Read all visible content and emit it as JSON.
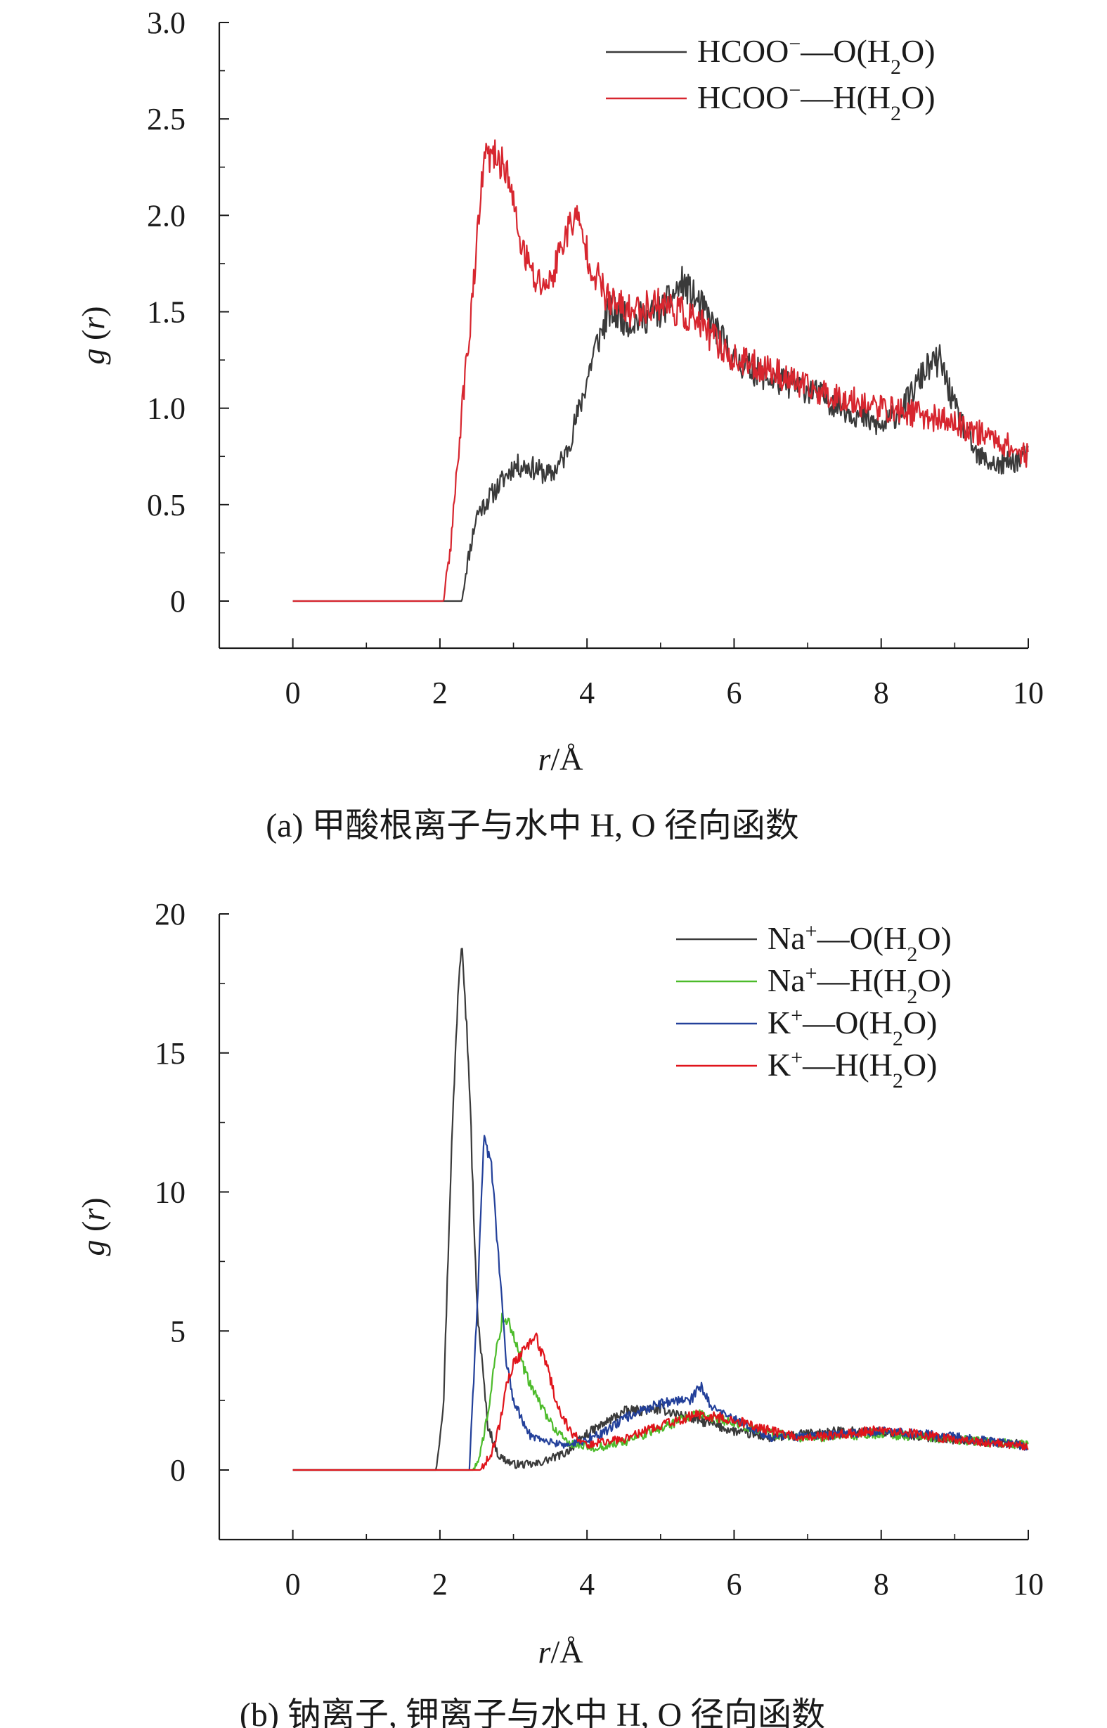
{
  "chart_data": [
    {
      "type": "line",
      "panel": "a",
      "caption": "(a) 甲酸根离子与水中 H, O 径向函数",
      "xlabel": "r/Å",
      "ylabel": "g (r)",
      "xlim": [
        -1,
        10
      ],
      "ylim": [
        -0.25,
        3.0
      ],
      "xticks": [
        0,
        2,
        4,
        6,
        8,
        10
      ],
      "xtick_labels": [
        "0",
        "2",
        "4",
        "6",
        "8",
        "10"
      ],
      "yticks": [
        0,
        0.5,
        1.0,
        1.5,
        2.0,
        2.5,
        3.0
      ],
      "ytick_labels": [
        "0",
        "0.5",
        "1.0",
        "1.5",
        "2.0",
        "2.5",
        "3.0"
      ],
      "legend_position": "top-right",
      "noise": 0.09,
      "series": [
        {
          "name": "HCOO⁻—O(H₂O)",
          "color": "#3a3a3a",
          "x": [
            0,
            2.3,
            2.35,
            2.5,
            2.8,
            3.0,
            3.2,
            3.5,
            3.7,
            3.9,
            4.1,
            4.3,
            4.6,
            5.0,
            5.3,
            5.6,
            6.0,
            6.5,
            7.0,
            7.5,
            8.0,
            8.3,
            8.6,
            8.8,
            9.0,
            9.3,
            9.6,
            10.0
          ],
          "y": [
            0,
            0,
            0.15,
            0.45,
            0.6,
            0.7,
            0.7,
            0.65,
            0.75,
            1.0,
            1.3,
            1.5,
            1.45,
            1.5,
            1.65,
            1.5,
            1.25,
            1.15,
            1.1,
            1.0,
            0.9,
            1.0,
            1.2,
            1.25,
            1.0,
            0.75,
            0.7,
            0.75
          ]
        },
        {
          "name": "HCOO⁻—H(H₂O)",
          "color": "#d7262f",
          "x": [
            0,
            2.05,
            2.15,
            2.3,
            2.45,
            2.6,
            2.75,
            2.9,
            3.1,
            3.3,
            3.5,
            3.7,
            3.85,
            4.05,
            4.3,
            4.6,
            5.0,
            5.5,
            6.0,
            6.5,
            7.0,
            7.5,
            8.0,
            8.5,
            9.0,
            9.5,
            10.0
          ],
          "y": [
            0,
            0,
            0.3,
            1.0,
            1.6,
            2.3,
            2.3,
            2.25,
            1.85,
            1.65,
            1.65,
            1.9,
            2.0,
            1.75,
            1.55,
            1.5,
            1.55,
            1.45,
            1.25,
            1.2,
            1.1,
            1.05,
            1.0,
            0.97,
            0.92,
            0.85,
            0.75
          ]
        }
      ]
    },
    {
      "type": "line",
      "panel": "b",
      "caption": "(b) 钠离子, 钾离子与水中 H, O 径向函数",
      "xlabel": "r/Å",
      "ylabel": "g (r)",
      "xlim": [
        -1,
        10
      ],
      "ylim": [
        -2.5,
        20
      ],
      "xticks": [
        0,
        2,
        4,
        6,
        8,
        10
      ],
      "xtick_labels": [
        "0",
        "2",
        "4",
        "6",
        "8",
        "10"
      ],
      "yticks": [
        0,
        5,
        10,
        15,
        20
      ],
      "ytick_labels": [
        "0",
        "5",
        "10",
        "15",
        "20"
      ],
      "legend_position": "top-right",
      "noise": 0.35,
      "series": [
        {
          "name": "Na⁺—O(H₂O)",
          "color": "#3a3a3a",
          "x": [
            0,
            1.95,
            2.05,
            2.15,
            2.25,
            2.3,
            2.4,
            2.5,
            2.65,
            2.8,
            3.0,
            3.3,
            3.7,
            4.0,
            4.5,
            5.0,
            5.5,
            6.0,
            6.5,
            7.0,
            7.5,
            8.0,
            9.0,
            10.0
          ],
          "y": [
            0,
            0,
            2.5,
            11.0,
            17.5,
            19.3,
            14.0,
            6.0,
            1.6,
            0.5,
            0.2,
            0.2,
            0.6,
            1.3,
            2.1,
            2.2,
            1.8,
            1.4,
            1.15,
            1.3,
            1.4,
            1.35,
            1.1,
            0.9
          ]
        },
        {
          "name": "Na⁺—H(H₂O)",
          "color": "#4cbb2a",
          "x": [
            0,
            2.45,
            2.55,
            2.65,
            2.75,
            2.85,
            2.95,
            3.05,
            3.2,
            3.4,
            3.6,
            3.8,
            4.1,
            4.5,
            5.0,
            5.5,
            6.0,
            6.5,
            7.0,
            8.0,
            9.0,
            10.0
          ],
          "y": [
            0,
            0,
            0.6,
            2.0,
            4.0,
            5.5,
            5.3,
            4.4,
            3.2,
            2.2,
            1.3,
            0.9,
            0.8,
            1.0,
            1.5,
            2.0,
            1.7,
            1.3,
            1.15,
            1.3,
            1.1,
            0.9
          ]
        },
        {
          "name": "K⁺—O(H₂O)",
          "color": "#23409a",
          "x": [
            0,
            2.4,
            2.5,
            2.6,
            2.7,
            2.8,
            2.9,
            3.0,
            3.2,
            3.5,
            3.8,
            4.2,
            4.6,
            5.0,
            5.4,
            5.55,
            5.7,
            6.0,
            6.5,
            7.0,
            7.5,
            8.0,
            9.0,
            10.0
          ],
          "y": [
            0,
            0,
            5.5,
            11.8,
            11.0,
            7.5,
            4.0,
            2.5,
            1.3,
            1.0,
            0.9,
            1.3,
            2.0,
            2.4,
            2.5,
            3.0,
            2.2,
            1.8,
            1.2,
            1.2,
            1.3,
            1.4,
            1.2,
            0.85
          ]
        },
        {
          "name": "K⁺—H(H₂O)",
          "color": "#e0141b",
          "x": [
            0,
            2.55,
            2.7,
            2.8,
            2.9,
            3.0,
            3.15,
            3.3,
            3.45,
            3.6,
            3.8,
            4.0,
            4.5,
            5.0,
            5.5,
            6.0,
            6.5,
            7.0,
            7.5,
            8.0,
            9.0,
            10.0
          ],
          "y": [
            0,
            0,
            0.6,
            1.5,
            3.0,
            3.8,
            4.3,
            4.8,
            3.8,
            2.3,
            1.3,
            0.9,
            1.1,
            1.6,
            2.0,
            1.8,
            1.4,
            1.15,
            1.3,
            1.45,
            1.1,
            0.85
          ]
        }
      ]
    }
  ]
}
